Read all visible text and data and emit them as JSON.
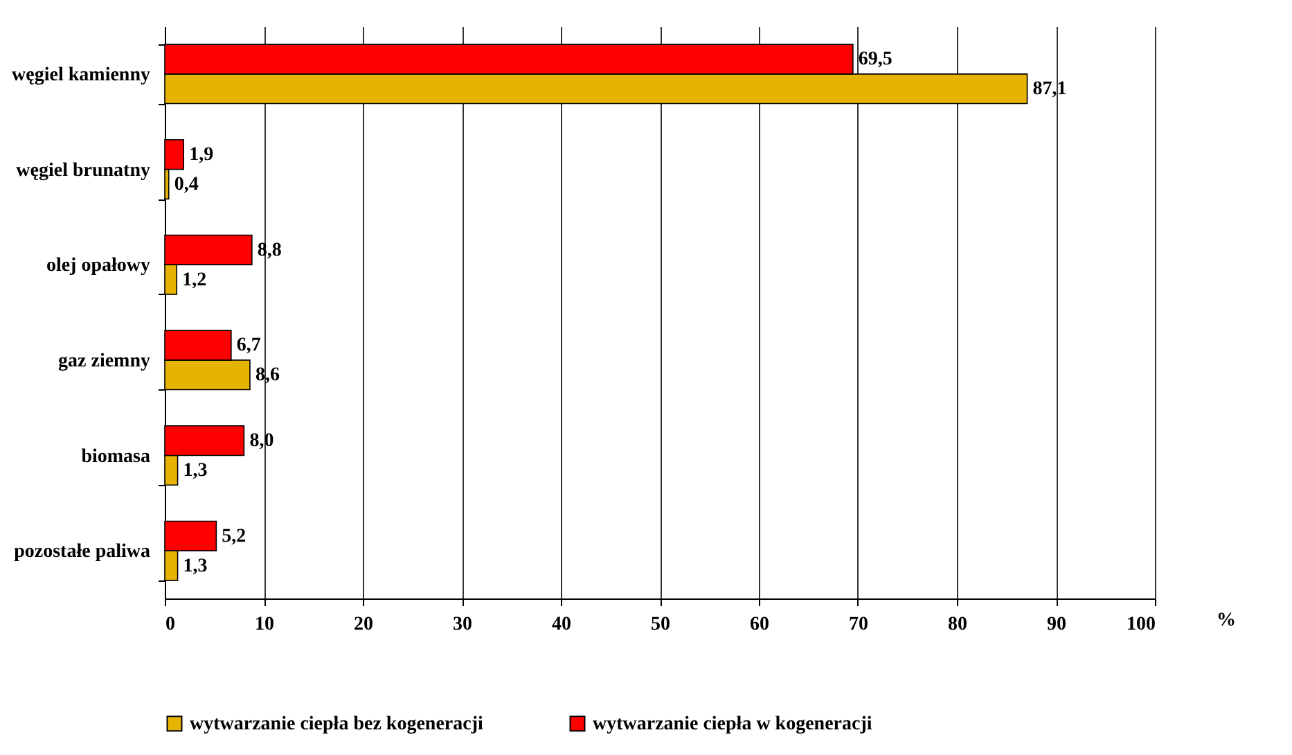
{
  "chart_data": {
    "type": "bar",
    "orientation": "horizontal",
    "xlabel": "%",
    "categories": [
      "węgiel kamienny",
      "węgiel brunatny",
      "olej opałowy",
      "gaz ziemny",
      "biomasa",
      "pozostałe paliwa"
    ],
    "series": [
      {
        "name": "wytwarzanie ciepła bez kogeneracji",
        "color": "#e6b400",
        "values": [
          87.1,
          0.4,
          1.2,
          8.6,
          1.3,
          1.3
        ],
        "value_labels": [
          "87,1",
          "0,4",
          "1,2",
          "8,6",
          "1,3",
          "1,3"
        ]
      },
      {
        "name": "wytwarzanie ciepła w kogeneracji",
        "color": "#ff0000",
        "values": [
          69.5,
          1.9,
          8.8,
          6.7,
          8.0,
          5.2
        ],
        "value_labels": [
          "69,5",
          "1,9",
          "8,8",
          "6,7",
          "8,0",
          "5,2"
        ]
      }
    ],
    "xlim": [
      0,
      100
    ],
    "xticks": [
      0,
      10,
      20,
      30,
      40,
      50,
      60,
      70,
      80,
      90,
      100
    ],
    "grid": "x",
    "legend": "bottom"
  }
}
